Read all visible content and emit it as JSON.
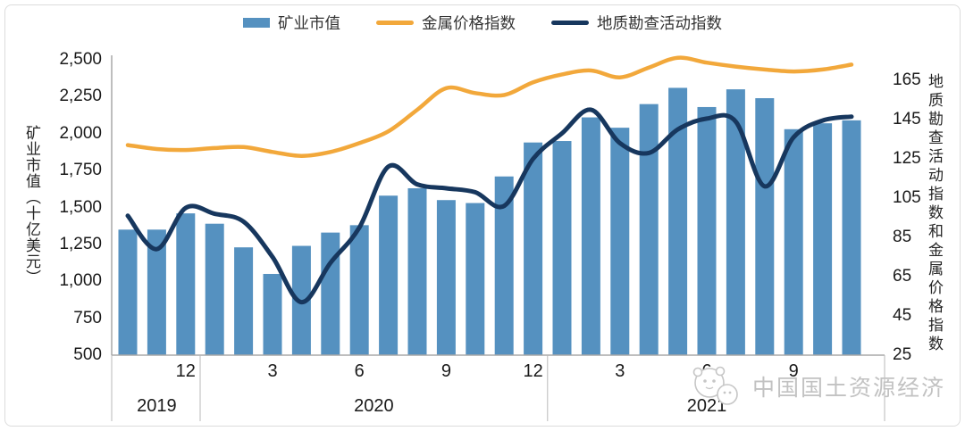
{
  "legend": [
    {
      "label": "矿业市值",
      "type": "bar",
      "color": "#5591c0"
    },
    {
      "label": "金属价格指数",
      "type": "line",
      "color": "#f2a83b"
    },
    {
      "label": "地质勘查活动指数",
      "type": "line",
      "color": "#17375e"
    }
  ],
  "left_axis": {
    "title": "矿业市值（十亿美元）",
    "ticks": [
      {
        "label": "2,500",
        "value": 2500
      },
      {
        "label": "2,250",
        "value": 2250
      },
      {
        "label": "2,000",
        "value": 2000
      },
      {
        "label": "1,750",
        "value": 1750
      },
      {
        "label": "1,500",
        "value": 1500
      },
      {
        "label": "1,250",
        "value": 1250
      },
      {
        "label": "1,000",
        "value": 1000
      },
      {
        "label": "750",
        "value": 750
      },
      {
        "label": "500",
        "value": 500
      }
    ]
  },
  "right_axis": {
    "title": "地质勘查活动指数和金属价格指数",
    "ticks": [
      {
        "label": "165",
        "value": 165
      },
      {
        "label": "145",
        "value": 145
      },
      {
        "label": "125",
        "value": 125
      },
      {
        "label": "105",
        "value": 105
      },
      {
        "label": "85",
        "value": 85
      },
      {
        "label": "65",
        "value": 65
      },
      {
        "label": "45",
        "value": 45
      },
      {
        "label": "25",
        "value": 25
      }
    ]
  },
  "x_axis": {
    "month_ticks": [
      {
        "label": "12",
        "index": 2
      },
      {
        "label": "3",
        "index": 5
      },
      {
        "label": "6",
        "index": 8
      },
      {
        "label": "9",
        "index": 11
      },
      {
        "label": "12",
        "index": 14
      },
      {
        "label": "3",
        "index": 17
      },
      {
        "label": "6",
        "index": 20
      },
      {
        "label": "9",
        "index": 23
      }
    ],
    "years": [
      {
        "label": "2019",
        "from": 0,
        "to": 2
      },
      {
        "label": "2020",
        "from": 3,
        "to": 14
      },
      {
        "label": "2021",
        "from": 15,
        "to": 25
      }
    ]
  },
  "watermark": {
    "text": "中国国土资源经济"
  },
  "colors": {
    "bar": "#5591c0",
    "metal_line": "#f2a83b",
    "exploration_line": "#17375e",
    "axis": "#a8a8a8",
    "separator": "#b8b8b8",
    "watermark": "#c6c6c6"
  },
  "chart_data": {
    "type": "bar",
    "title": "",
    "xlabel": "",
    "ylabel_left": "矿业市值（十亿美元）",
    "ylabel_right": "地质勘查活动指数和金属价格指数",
    "left_axis_range": [
      500,
      2500
    ],
    "right_axis_range": [
      25,
      165
    ],
    "grid": false,
    "legend_position": "top",
    "x": [
      "2019-10",
      "2019-11",
      "2019-12",
      "2020-01",
      "2020-02",
      "2020-03",
      "2020-04",
      "2020-05",
      "2020-06",
      "2020-07",
      "2020-08",
      "2020-09",
      "2020-10",
      "2020-11",
      "2020-12",
      "2021-01",
      "2021-02",
      "2021-03",
      "2021-04",
      "2021-05",
      "2021-06",
      "2021-07",
      "2021-08",
      "2021-09",
      "2021-10",
      "2021-11"
    ],
    "series": [
      {
        "name": "矿业市值",
        "type": "bar",
        "axis": "left",
        "values": [
          1350,
          1350,
          1460,
          1390,
          1230,
          1050,
          1240,
          1330,
          1380,
          1580,
          1630,
          1550,
          1530,
          1710,
          1940,
          1950,
          2110,
          2040,
          2200,
          2310,
          2180,
          2300,
          2240,
          2030,
          2070,
          2090
        ]
      },
      {
        "name": "金属价格指数",
        "type": "line",
        "axis": "right",
        "values": [
          132,
          130,
          129.5,
          130.5,
          131,
          128.5,
          126.5,
          128.5,
          133,
          139,
          150,
          161,
          158.5,
          157.5,
          164,
          168,
          170,
          166.5,
          171.5,
          176.5,
          174,
          172,
          170.5,
          169.5,
          170.5,
          173
        ]
      },
      {
        "name": "地质勘查活动指数",
        "type": "line",
        "axis": "right",
        "values": [
          96,
          79,
          100,
          97,
          93,
          75,
          52,
          72,
          90,
          121,
          112,
          110,
          108,
          101,
          125,
          138,
          150,
          133,
          128,
          140,
          145.5,
          144,
          111,
          136,
          144.5,
          146.5
        ]
      }
    ]
  }
}
